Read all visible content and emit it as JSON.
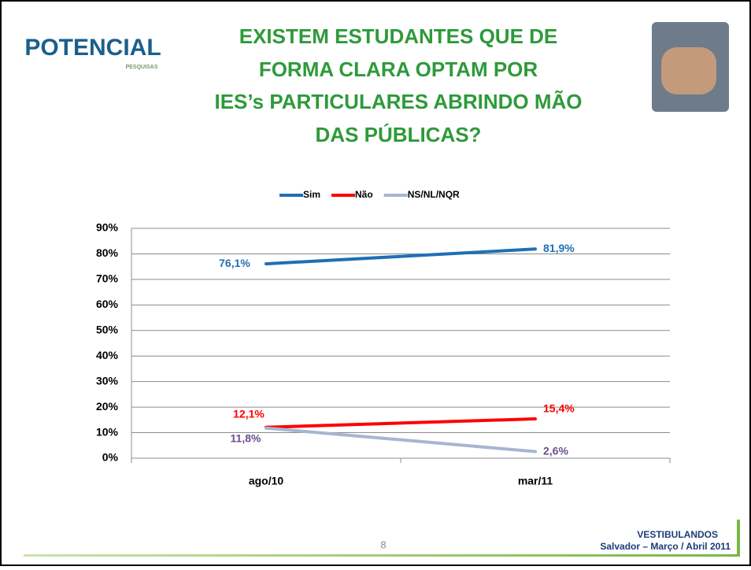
{
  "slide": {
    "logo": "POTENCIAL",
    "logo_sub": "PESQUISAS",
    "title": [
      "EXISTEM ESTUDANTES QUE DE",
      "FORMA CLARA OPTAM POR",
      "IES’s PARTICULARES ABRINDO MÃO",
      "DAS PÚBLICAS?"
    ],
    "footer": [
      "VESTIBULANDOS",
      "Salvador – Março / Abril 2011"
    ],
    "page_number": 8
  },
  "chart_data": {
    "type": "line",
    "categories": [
      "ago/10",
      "mar/11"
    ],
    "series": [
      {
        "name": "Sim",
        "color": "#1f6fb5",
        "label_color": "#1f6fb5",
        "values": [
          76.1,
          81.9
        ],
        "value_labels": [
          "76,1%",
          "81,9%"
        ]
      },
      {
        "name": "Não",
        "color": "#ff0000",
        "label_color": "#ff0000",
        "values": [
          12.1,
          15.4
        ],
        "value_labels": [
          "12,1%",
          "15,4%"
        ]
      },
      {
        "name": "NS/NL/NQR",
        "color": "#a7b5d3",
        "label_color": "#6b4f91",
        "values": [
          11.8,
          2.6
        ],
        "value_labels": [
          "11,8%",
          "2,6%"
        ]
      }
    ],
    "ylim": [
      0,
      90
    ],
    "yticks": [
      {
        "value": 0,
        "label": "0%"
      },
      {
        "value": 10,
        "label": "10%"
      },
      {
        "value": 20,
        "label": "20%"
      },
      {
        "value": 30,
        "label": "30%"
      },
      {
        "value": 40,
        "label": "40%"
      },
      {
        "value": 50,
        "label": "50%"
      },
      {
        "value": 60,
        "label": "60%"
      },
      {
        "value": 70,
        "label": "70%"
      },
      {
        "value": 80,
        "label": "80%"
      },
      {
        "value": 90,
        "label": "90%"
      }
    ],
    "grid": true,
    "legend": "top"
  }
}
